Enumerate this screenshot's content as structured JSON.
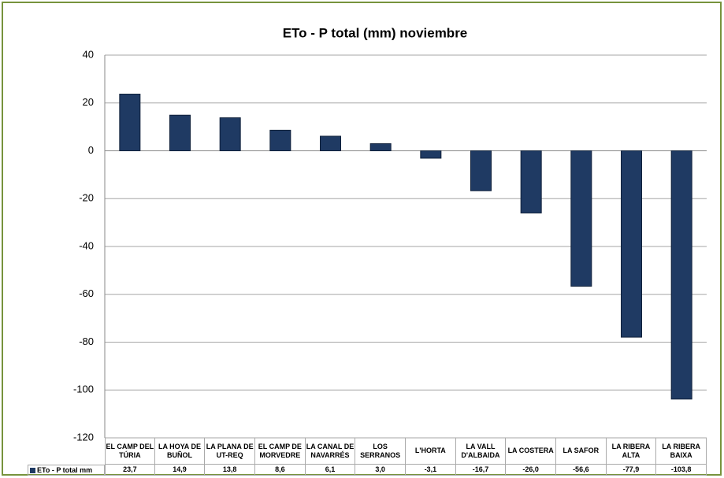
{
  "chart_data": {
    "type": "bar",
    "title": "ETo - P total (mm) noviembre",
    "categories": [
      "EL CAMP DEL TÚRIA",
      "LA HOYA DE BUÑOL",
      "LA PLANA DE UT-REQ",
      "EL CAMP DE MORVEDRE",
      "LA CANAL DE NAVARRÉS",
      "LOS SERRANOS",
      "L'HORTA",
      "LA VALL D'ALBAIDA",
      "LA COSTERA",
      "LA SAFOR",
      "LA RIBERA ALTA",
      "LA RIBERA BAIXA"
    ],
    "series": [
      {
        "name": "ETo - P total mm",
        "color": "#1f3a63",
        "values": [
          23.7,
          14.9,
          13.8,
          8.6,
          6.1,
          3.0,
          -3.1,
          -16.7,
          -26.0,
          -56.6,
          -77.9,
          -103.8
        ],
        "value_labels": [
          "23,7",
          "14,9",
          "13,8",
          "8,6",
          "6,1",
          "3,0",
          "-3,1",
          "-16,7",
          "-26,0",
          "-56,6",
          "-77,9",
          "-103,8"
        ]
      }
    ],
    "ylim": [
      -120,
      40
    ],
    "yticks": [
      -120,
      -100,
      -80,
      -60,
      -40,
      -20,
      0,
      20,
      40
    ],
    "grid": true,
    "data_table": true
  }
}
